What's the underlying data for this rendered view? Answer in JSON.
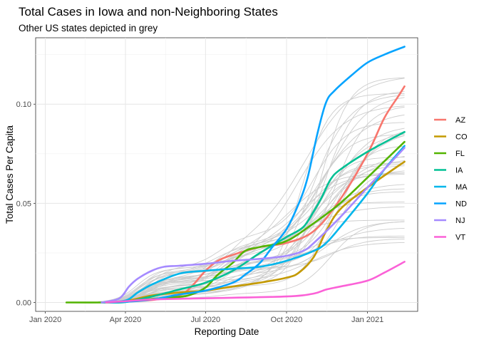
{
  "chart_data": {
    "type": "line",
    "title": "Total Cases in Iowa and non-Neighboring States",
    "subtitle": "Other US states depicted in grey",
    "xlabel": "Reporting Date",
    "ylabel": "Total Cases Per Capita",
    "x_ticks": [
      "Jan 2020",
      "Apr 2020",
      "Jul 2020",
      "Oct 2020",
      "Jan 2021"
    ],
    "x_tick_dates": [
      "2020-01-01",
      "2020-04-01",
      "2020-07-01",
      "2020-10-01",
      "2021-01-01"
    ],
    "y_ticks": [
      "0.00",
      "0.05",
      "0.10"
    ],
    "y_tick_values": [
      0,
      0.05,
      0.1
    ],
    "xlim": [
      "2019-12-21",
      "2021-02-27"
    ],
    "ylim": [
      -0.0045,
      0.1335
    ],
    "grid": true,
    "legend_position": "right",
    "background_series_color": "#cccccc",
    "series": [
      {
        "name": "AZ",
        "color": "#F8766D",
        "points": [
          [
            "2020-03-05",
            0
          ],
          [
            "2020-04-01",
            0.0004
          ],
          [
            "2020-05-01",
            0.0012
          ],
          [
            "2020-06-01",
            0.0035
          ],
          [
            "2020-06-15",
            0.008
          ],
          [
            "2020-07-01",
            0.016
          ],
          [
            "2020-07-15",
            0.021
          ],
          [
            "2020-08-01",
            0.024
          ],
          [
            "2020-09-01",
            0.028
          ],
          [
            "2020-10-01",
            0.03
          ],
          [
            "2020-11-01",
            0.036
          ],
          [
            "2020-12-01",
            0.052
          ],
          [
            "2021-01-01",
            0.075
          ],
          [
            "2021-01-20",
            0.093
          ],
          [
            "2021-02-05",
            0.104
          ],
          [
            "2021-02-12",
            0.109
          ]
        ]
      },
      {
        "name": "CO",
        "color": "#C49A00",
        "points": [
          [
            "2020-03-05",
            0
          ],
          [
            "2020-04-01",
            0.0007
          ],
          [
            "2020-05-01",
            0.0035
          ],
          [
            "2020-06-01",
            0.005
          ],
          [
            "2020-07-01",
            0.006
          ],
          [
            "2020-08-01",
            0.008
          ],
          [
            "2020-09-01",
            0.01
          ],
          [
            "2020-10-01",
            0.0125
          ],
          [
            "2020-10-15",
            0.015
          ],
          [
            "2020-11-01",
            0.023
          ],
          [
            "2020-11-15",
            0.036
          ],
          [
            "2020-12-01",
            0.047
          ],
          [
            "2021-01-01",
            0.058
          ],
          [
            "2021-02-12",
            0.071
          ]
        ]
      },
      {
        "name": "FL",
        "color": "#53B400",
        "points": [
          [
            "2020-01-25",
            0
          ],
          [
            "2020-03-15",
            0
          ],
          [
            "2020-04-01",
            0.0003
          ],
          [
            "2020-05-01",
            0.0018
          ],
          [
            "2020-06-01",
            0.0028
          ],
          [
            "2020-06-15",
            0.004
          ],
          [
            "2020-07-01",
            0.0075
          ],
          [
            "2020-07-15",
            0.014
          ],
          [
            "2020-08-01",
            0.02
          ],
          [
            "2020-08-15",
            0.026
          ],
          [
            "2020-09-01",
            0.028
          ],
          [
            "2020-10-01",
            0.031
          ],
          [
            "2020-11-01",
            0.04
          ],
          [
            "2020-12-01",
            0.05
          ],
          [
            "2021-01-01",
            0.063
          ],
          [
            "2021-02-12",
            0.081
          ]
        ]
      },
      {
        "name": "IA",
        "color": "#00C094",
        "points": [
          [
            "2020-03-10",
            0
          ],
          [
            "2020-04-01",
            0.0002
          ],
          [
            "2020-05-01",
            0.003
          ],
          [
            "2020-06-01",
            0.0065
          ],
          [
            "2020-07-01",
            0.01
          ],
          [
            "2020-08-01",
            0.016
          ],
          [
            "2020-09-01",
            0.025
          ],
          [
            "2020-10-01",
            0.033
          ],
          [
            "2020-10-20",
            0.038
          ],
          [
            "2020-11-01",
            0.046
          ],
          [
            "2020-11-10",
            0.053
          ],
          [
            "2020-11-20",
            0.062
          ],
          [
            "2020-12-01",
            0.067
          ],
          [
            "2021-01-01",
            0.076
          ],
          [
            "2021-02-12",
            0.086
          ]
        ]
      },
      {
        "name": "MA",
        "color": "#00B6EB",
        "points": [
          [
            "2020-03-05",
            0
          ],
          [
            "2020-04-01",
            0.001
          ],
          [
            "2020-04-15",
            0.005
          ],
          [
            "2020-05-01",
            0.009
          ],
          [
            "2020-06-01",
            0.0145
          ],
          [
            "2020-07-01",
            0.016
          ],
          [
            "2020-08-01",
            0.017
          ],
          [
            "2020-09-01",
            0.018
          ],
          [
            "2020-10-01",
            0.021
          ],
          [
            "2020-11-01",
            0.026
          ],
          [
            "2020-11-15",
            0.03
          ],
          [
            "2020-12-01",
            0.038
          ],
          [
            "2021-01-01",
            0.055
          ],
          [
            "2021-01-20",
            0.067
          ],
          [
            "2021-02-12",
            0.079
          ]
        ]
      },
      {
        "name": "ND",
        "color": "#06A4FF",
        "points": [
          [
            "2020-03-15",
            0
          ],
          [
            "2020-04-01",
            0.0003
          ],
          [
            "2020-05-01",
            0.0015
          ],
          [
            "2020-06-01",
            0.004
          ],
          [
            "2020-07-01",
            0.006
          ],
          [
            "2020-08-01",
            0.01
          ],
          [
            "2020-08-15",
            0.014
          ],
          [
            "2020-09-01",
            0.02
          ],
          [
            "2020-09-15",
            0.028
          ],
          [
            "2020-10-01",
            0.037
          ],
          [
            "2020-10-15",
            0.05
          ],
          [
            "2020-10-25",
            0.063
          ],
          [
            "2020-11-05",
            0.085
          ],
          [
            "2020-11-15",
            0.101
          ],
          [
            "2020-11-25",
            0.107
          ],
          [
            "2020-12-15",
            0.115
          ],
          [
            "2021-01-01",
            0.121
          ],
          [
            "2021-01-20",
            0.125
          ],
          [
            "2021-02-12",
            0.129
          ]
        ]
      },
      {
        "name": "NJ",
        "color": "#A58AFF",
        "points": [
          [
            "2020-03-05",
            0
          ],
          [
            "2020-03-25",
            0.002
          ],
          [
            "2020-04-05",
            0.008
          ],
          [
            "2020-04-15",
            0.012
          ],
          [
            "2020-05-01",
            0.016
          ],
          [
            "2020-05-15",
            0.018
          ],
          [
            "2020-06-01",
            0.0185
          ],
          [
            "2020-07-01",
            0.0195
          ],
          [
            "2020-08-01",
            0.021
          ],
          [
            "2020-09-01",
            0.022
          ],
          [
            "2020-10-01",
            0.0235
          ],
          [
            "2020-10-20",
            0.026
          ],
          [
            "2020-11-01",
            0.03
          ],
          [
            "2020-12-01",
            0.043
          ],
          [
            "2021-01-01",
            0.058
          ],
          [
            "2021-02-12",
            0.078
          ]
        ]
      },
      {
        "name": "VT",
        "color": "#FB61D7",
        "points": [
          [
            "2020-03-10",
            0
          ],
          [
            "2020-04-01",
            0.0006
          ],
          [
            "2020-05-01",
            0.0015
          ],
          [
            "2020-07-01",
            0.0021
          ],
          [
            "2020-10-01",
            0.003
          ],
          [
            "2020-11-01",
            0.0045
          ],
          [
            "2020-11-15",
            0.0065
          ],
          [
            "2020-12-01",
            0.008
          ],
          [
            "2021-01-01",
            0.011
          ],
          [
            "2021-01-20",
            0.015
          ],
          [
            "2021-02-12",
            0.0205
          ]
        ]
      }
    ]
  }
}
